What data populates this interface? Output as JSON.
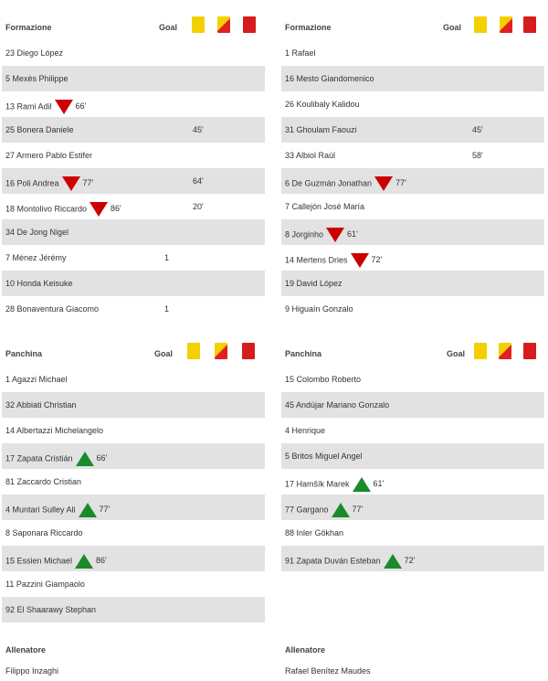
{
  "labels": {
    "formazione": "Formazione",
    "panchina": "Panchina",
    "goal": "Goal",
    "allenatore": "Allenatore"
  },
  "colors": {
    "row_shade": "#e2e2e2",
    "sub_out": "#cc0000",
    "sub_in": "#1a8a2a",
    "yellow_card": "#f5d000",
    "red_card": "#d61c1c"
  },
  "icons": {
    "sub_out": "red-down-triangle",
    "sub_in": "green-up-triangle",
    "yellow_card": "yellow-card",
    "second_yellow": "yellow-red-card",
    "red_card": "red-card"
  },
  "home": {
    "lineup": [
      {
        "name": "23 Diego López",
        "goals": "",
        "yellow": ""
      },
      {
        "name": "5 Mexès Philippe",
        "goals": "",
        "yellow": ""
      },
      {
        "name": "13 Rami Adil",
        "sub_out": "66'",
        "goals": "",
        "yellow": ""
      },
      {
        "name": "25 Bonera Daniele",
        "goals": "",
        "yellow": "45'"
      },
      {
        "name": "27 Armero Pablo Estifer",
        "goals": "",
        "yellow": ""
      },
      {
        "name": "16 Poli Andrea",
        "sub_out": "77'",
        "goals": "",
        "yellow": "64'"
      },
      {
        "name": "18 Montolivo Riccardo",
        "sub_out": "86'",
        "goals": "",
        "yellow": "20'"
      },
      {
        "name": "34 De Jong Nigel",
        "goals": "",
        "yellow": ""
      },
      {
        "name": "7 Ménez Jérémy",
        "goals": "1",
        "yellow": ""
      },
      {
        "name": "10 Honda Keisuke",
        "goals": "",
        "yellow": ""
      },
      {
        "name": "28 Bonaventura Giacomo",
        "goals": "1",
        "yellow": ""
      }
    ],
    "bench": [
      {
        "name": "1 Agazzi Michael"
      },
      {
        "name": "32 Abbiati Christian"
      },
      {
        "name": "14 Albertazzi Michelangelo"
      },
      {
        "name": "17 Zapata Cristián",
        "sub_in": "66'"
      },
      {
        "name": "81 Zaccardo Cristian"
      },
      {
        "name": "4 Muntari Sulley Ali",
        "sub_in": "77'"
      },
      {
        "name": "8 Saponara Riccardo"
      },
      {
        "name": "15 Essien Michael",
        "sub_in": "86'"
      },
      {
        "name": "11 Pazzini Giampaolo"
      },
      {
        "name": "92 El Shaarawy Stephan"
      }
    ],
    "coach": "Filippo Inzaghi"
  },
  "away": {
    "lineup": [
      {
        "name": "1 Rafael",
        "goals": "",
        "yellow": ""
      },
      {
        "name": "16 Mesto Giandomenico",
        "goals": "",
        "yellow": ""
      },
      {
        "name": "26 Koulibaly Kalidou",
        "goals": "",
        "yellow": ""
      },
      {
        "name": "31 Ghoulam Faouzi",
        "goals": "",
        "yellow": "45'"
      },
      {
        "name": "33 Albiol Raúl",
        "goals": "",
        "yellow": "58'"
      },
      {
        "name": "6 De Guzmán Jonathan",
        "sub_out": "77'",
        "goals": "",
        "yellow": ""
      },
      {
        "name": "7 Callejón José María",
        "goals": "",
        "yellow": ""
      },
      {
        "name": "8 Jorginho",
        "sub_out": "61'",
        "goals": "",
        "yellow": ""
      },
      {
        "name": "14 Mertens Dries",
        "sub_out": "72'",
        "goals": "",
        "yellow": ""
      },
      {
        "name": "19 David López",
        "goals": "",
        "yellow": ""
      },
      {
        "name": "9 Higuaín Gonzalo",
        "goals": "",
        "yellow": ""
      }
    ],
    "bench": [
      {
        "name": "15 Colombo Roberto"
      },
      {
        "name": "45 Andújar Mariano Gonzalo"
      },
      {
        "name": "4 Henrique"
      },
      {
        "name": "5 Britos Miguel Angel"
      },
      {
        "name": "17 Hamšík Marek",
        "sub_in": "61'"
      },
      {
        "name": "77 Gargano",
        "sub_in": "77'"
      },
      {
        "name": "88 Inler Gökhan"
      },
      {
        "name": "91 Zapata Duván Esteban",
        "sub_in": "72'"
      }
    ],
    "coach": "Rafael Benítez Maudes"
  }
}
